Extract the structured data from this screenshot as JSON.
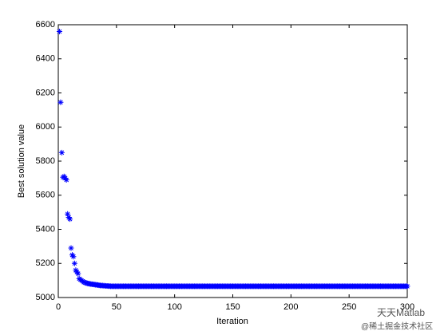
{
  "chart_data": {
    "type": "scatter",
    "xlabel": "Iteration",
    "ylabel": "Best solution value",
    "xlim": [
      0,
      300
    ],
    "xticks": [
      0,
      50,
      100,
      150,
      200,
      250,
      300
    ],
    "ylim": [
      5000,
      6600
    ],
    "yticks": [
      5000,
      5200,
      5400,
      5600,
      5800,
      6000,
      6200,
      6400,
      6600
    ],
    "marker": "asterisk",
    "color": "#0000ff",
    "x": [
      1,
      2,
      3,
      4,
      5,
      6,
      7,
      8,
      9,
      10,
      11,
      12,
      13,
      14,
      15,
      16,
      17,
      18,
      19,
      20,
      21,
      22,
      23,
      24,
      25,
      26,
      27,
      28,
      29,
      30,
      31,
      32,
      33,
      34,
      35,
      36,
      37,
      38,
      39,
      40,
      41,
      42,
      43,
      44,
      45,
      46,
      47,
      48,
      49,
      50,
      51,
      52,
      53,
      54,
      55,
      56,
      57,
      58,
      59,
      60,
      61,
      62,
      63,
      64,
      65,
      66,
      67,
      68,
      69,
      70,
      71,
      72,
      73,
      74,
      75,
      76,
      77,
      78,
      79,
      80,
      81,
      82,
      83,
      84,
      85,
      86,
      87,
      88,
      89,
      90,
      91,
      92,
      93,
      94,
      95,
      96,
      97,
      98,
      99,
      100,
      101,
      102,
      103,
      104,
      105,
      106,
      107,
      108,
      109,
      110,
      111,
      112,
      113,
      114,
      115,
      116,
      117,
      118,
      119,
      120,
      121,
      122,
      123,
      124,
      125,
      126,
      127,
      128,
      129,
      130,
      131,
      132,
      133,
      134,
      135,
      136,
      137,
      138,
      139,
      140,
      141,
      142,
      143,
      144,
      145,
      146,
      147,
      148,
      149,
      150,
      151,
      152,
      153,
      154,
      155,
      156,
      157,
      158,
      159,
      160,
      161,
      162,
      163,
      164,
      165,
      166,
      167,
      168,
      169,
      170,
      171,
      172,
      173,
      174,
      175,
      176,
      177,
      178,
      179,
      180,
      181,
      182,
      183,
      184,
      185,
      186,
      187,
      188,
      189,
      190,
      191,
      192,
      193,
      194,
      195,
      196,
      197,
      198,
      199,
      200,
      201,
      202,
      203,
      204,
      205,
      206,
      207,
      208,
      209,
      210,
      211,
      212,
      213,
      214,
      215,
      216,
      217,
      218,
      219,
      220,
      221,
      222,
      223,
      224,
      225,
      226,
      227,
      228,
      229,
      230,
      231,
      232,
      233,
      234,
      235,
      236,
      237,
      238,
      239,
      240,
      241,
      242,
      243,
      244,
      245,
      246,
      247,
      248,
      249,
      250,
      251,
      252,
      253,
      254,
      255,
      256,
      257,
      258,
      259,
      260,
      261,
      262,
      263,
      264,
      265,
      266,
      267,
      268,
      269,
      270,
      271,
      272,
      273,
      274,
      275,
      276,
      277,
      278,
      279,
      280,
      281,
      282,
      283,
      284,
      285,
      286,
      287,
      288,
      289,
      290,
      291,
      292,
      293,
      294,
      295,
      296,
      297,
      298,
      299,
      300
    ],
    "values": [
      6560,
      6145,
      5850,
      5705,
      5710,
      5700,
      5690,
      5490,
      5470,
      5460,
      5290,
      5250,
      5240,
      5200,
      5160,
      5150,
      5140,
      5110,
      5105,
      5100,
      5095,
      5090,
      5088,
      5085,
      5083,
      5082,
      5080,
      5079,
      5078,
      5077,
      5076,
      5075,
      5074,
      5073,
      5072,
      5071,
      5070,
      5070,
      5069,
      5069,
      5068,
      5068,
      5067,
      5067,
      5066,
      5066,
      5066,
      5066,
      5066,
      5066,
      5066,
      5066,
      5066,
      5066,
      5066,
      5066,
      5066,
      5066,
      5066,
      5066,
      5066,
      5066,
      5066,
      5066,
      5066,
      5066,
      5066,
      5066,
      5066,
      5066,
      5066,
      5066,
      5066,
      5066,
      5066,
      5066,
      5066,
      5066,
      5066,
      5066,
      5066,
      5066,
      5066,
      5066,
      5066,
      5066,
      5066,
      5066,
      5066,
      5066,
      5066,
      5066,
      5066,
      5066,
      5066,
      5066,
      5066,
      5066,
      5066,
      5066,
      5066,
      5066,
      5066,
      5066,
      5066,
      5066,
      5066,
      5066,
      5066,
      5066,
      5066,
      5066,
      5066,
      5066,
      5066,
      5066,
      5066,
      5066,
      5066,
      5066,
      5066,
      5066,
      5066,
      5066,
      5066,
      5066,
      5066,
      5066,
      5066,
      5066,
      5066,
      5066,
      5066,
      5066,
      5066,
      5066,
      5066,
      5066,
      5066,
      5066,
      5066,
      5066,
      5066,
      5066,
      5066,
      5066,
      5066,
      5066,
      5066,
      5066,
      5066,
      5066,
      5066,
      5066,
      5066,
      5066,
      5066,
      5066,
      5066,
      5066,
      5066,
      5066,
      5066,
      5066,
      5066,
      5066,
      5066,
      5066,
      5066,
      5066,
      5066,
      5066,
      5066,
      5066,
      5066,
      5066,
      5066,
      5066,
      5066,
      5066,
      5066,
      5066,
      5066,
      5066,
      5066,
      5066,
      5066,
      5066,
      5066,
      5066,
      5066,
      5066,
      5066,
      5066,
      5066,
      5066,
      5066,
      5066,
      5066,
      5066,
      5066,
      5066,
      5066,
      5066,
      5066,
      5066,
      5066,
      5066,
      5066,
      5066,
      5066,
      5066,
      5066,
      5066,
      5066,
      5066,
      5066,
      5066,
      5066,
      5066,
      5066,
      5066,
      5066,
      5066,
      5066,
      5066,
      5066,
      5066,
      5066,
      5066,
      5066,
      5066,
      5066,
      5066,
      5066,
      5066,
      5066,
      5066,
      5066,
      5066,
      5066,
      5066,
      5066,
      5066,
      5066,
      5066,
      5066,
      5066,
      5066,
      5066,
      5066,
      5066,
      5066,
      5066,
      5066,
      5066,
      5066,
      5066,
      5066,
      5066,
      5066,
      5066,
      5066,
      5066,
      5066,
      5066,
      5066,
      5066,
      5066,
      5066,
      5066,
      5066,
      5066,
      5066,
      5066,
      5066,
      5066,
      5066,
      5066,
      5066,
      5066,
      5066,
      5066,
      5066,
      5066,
      5066,
      5066,
      5066,
      5066,
      5066,
      5066,
      5066,
      5066,
      5066,
      5066,
      5066,
      5066,
      5066,
      5066,
      5066
    ],
    "watermark": "天天Matlab",
    "watermark_source": "@稀土掘金技术社区"
  }
}
